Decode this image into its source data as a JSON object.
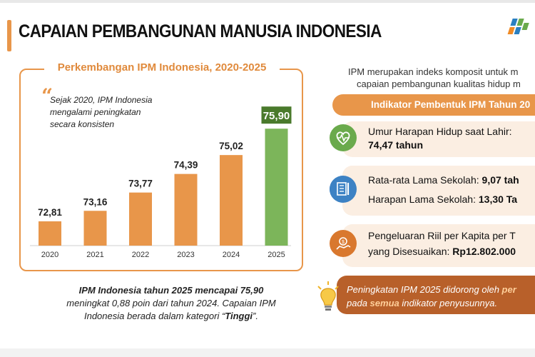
{
  "header": {
    "title": "CAPAIAN PEMBANGUNAN MANUSIA INDONESIA"
  },
  "card": {
    "title": "Perkembangan IPM Indonesia, 2020-2025",
    "quote_line1": "Sejak 2020, IPM Indonesia",
    "quote_line2": "mengalami peningkatan",
    "quote_line3": "secara konsisten"
  },
  "chart_data": {
    "type": "bar",
    "title": "Perkembangan IPM Indonesia, 2020-2025",
    "categories": [
      "2020",
      "2021",
      "2022",
      "2023",
      "2024",
      "2025"
    ],
    "values": [
      72.81,
      73.16,
      73.77,
      74.39,
      75.02,
      75.9
    ],
    "value_labels": [
      "72,81",
      "73,16",
      "73,77",
      "74,39",
      "75,02",
      "75,90"
    ],
    "colors": [
      "#e8964a",
      "#e8964a",
      "#e8964a",
      "#e8964a",
      "#e8964a",
      "#7cb55a"
    ],
    "highlight_label_color": "#4a7a2c",
    "xlabel": "",
    "ylabel": "",
    "grid": false,
    "legend": false
  },
  "summary": {
    "bold_part": "IPM Indonesia tahun 2025 mencapai 75,90",
    "line2": "meningkat 0,88 poin dari tahun 2024. Capaian IPM",
    "line3_pre": "Indonesia berada dalam kategori “",
    "line3_bold": "Tinggi",
    "line3_post": "”."
  },
  "right": {
    "intro_line1": "IPM merupakan indeks komposit untuk m",
    "intro_line2": "capaian pembangunan kualitas hidup m",
    "indicator_header": "Indikator Pembentuk IPM Tahun 20",
    "uhh_label": "Umur Harapan Hidup saat Lahir:",
    "uhh_value": "74,47 tahun",
    "rls_label": "Rata-rata Lama Sekolah: ",
    "rls_value": "9,07 tah",
    "hls_label": "Harapan Lama Sekolah: ",
    "hls_value": "13,30 Ta",
    "exp_label1": "Pengeluaran Riil per Kapita per T",
    "exp_label2": "yang Disesuaikan: ",
    "exp_value": "Rp12.802.000",
    "note_pre": "Peningkatan IPM 2025 didorong oleh ",
    "note_bold1": "per",
    "note_line2_pre": "pada ",
    "note_bold2": "semua",
    "note_line2_post": " indikator penyusunnya."
  },
  "colors": {
    "accent": "#e8964a",
    "highlight_bar": "#7cb55a",
    "icon_green": "#6aaa4c",
    "icon_blue": "#3d82c4",
    "icon_orange": "#d9782e",
    "note_bg": "#b8602a"
  },
  "icons": [
    "heart-pulse-icon",
    "book-icon",
    "money-icon",
    "lightbulb-icon",
    "bps-logo"
  ]
}
